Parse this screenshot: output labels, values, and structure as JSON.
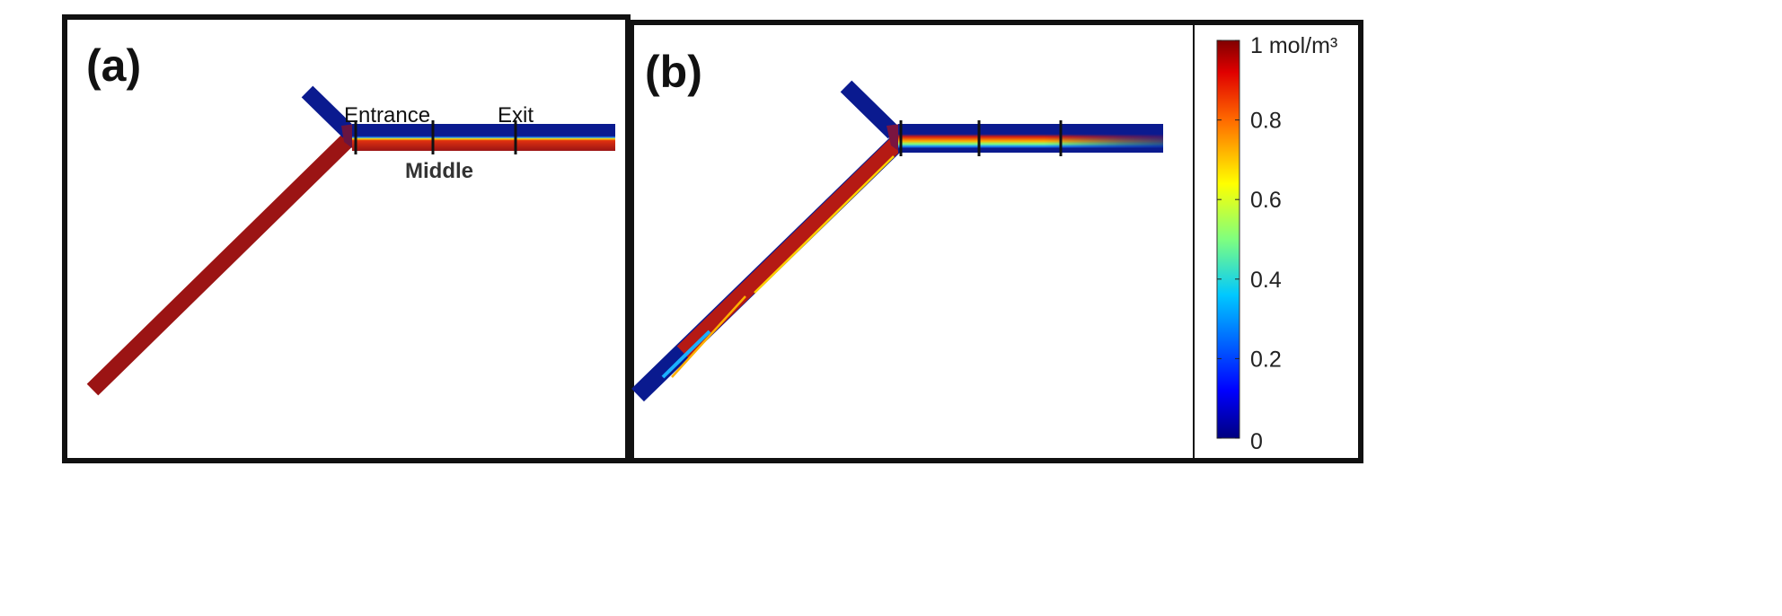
{
  "panel_a": {
    "label": "(a)",
    "annotations": {
      "entrance": "Entrance",
      "middle": "Middle",
      "exit": "Exit"
    }
  },
  "panel_b": {
    "label": "(b)"
  },
  "colorbar": {
    "ticks": [
      {
        "value": 1,
        "label": "1 mol/m³"
      },
      {
        "value": 0.8,
        "label": "0.8"
      },
      {
        "value": 0.6,
        "label": "0.6"
      },
      {
        "value": 0.4,
        "label": "0.4"
      },
      {
        "value": 0.2,
        "label": "0.2"
      },
      {
        "value": 0,
        "label": "0"
      }
    ],
    "colors": [
      "#00007f",
      "#0000ff",
      "#00bfff",
      "#7fff7f",
      "#ffff00",
      "#ff7f00",
      "#ff0000",
      "#800000"
    ]
  },
  "colors": {
    "low": "#0a1a8f",
    "high": "#9b1414",
    "frame": "#111111"
  }
}
